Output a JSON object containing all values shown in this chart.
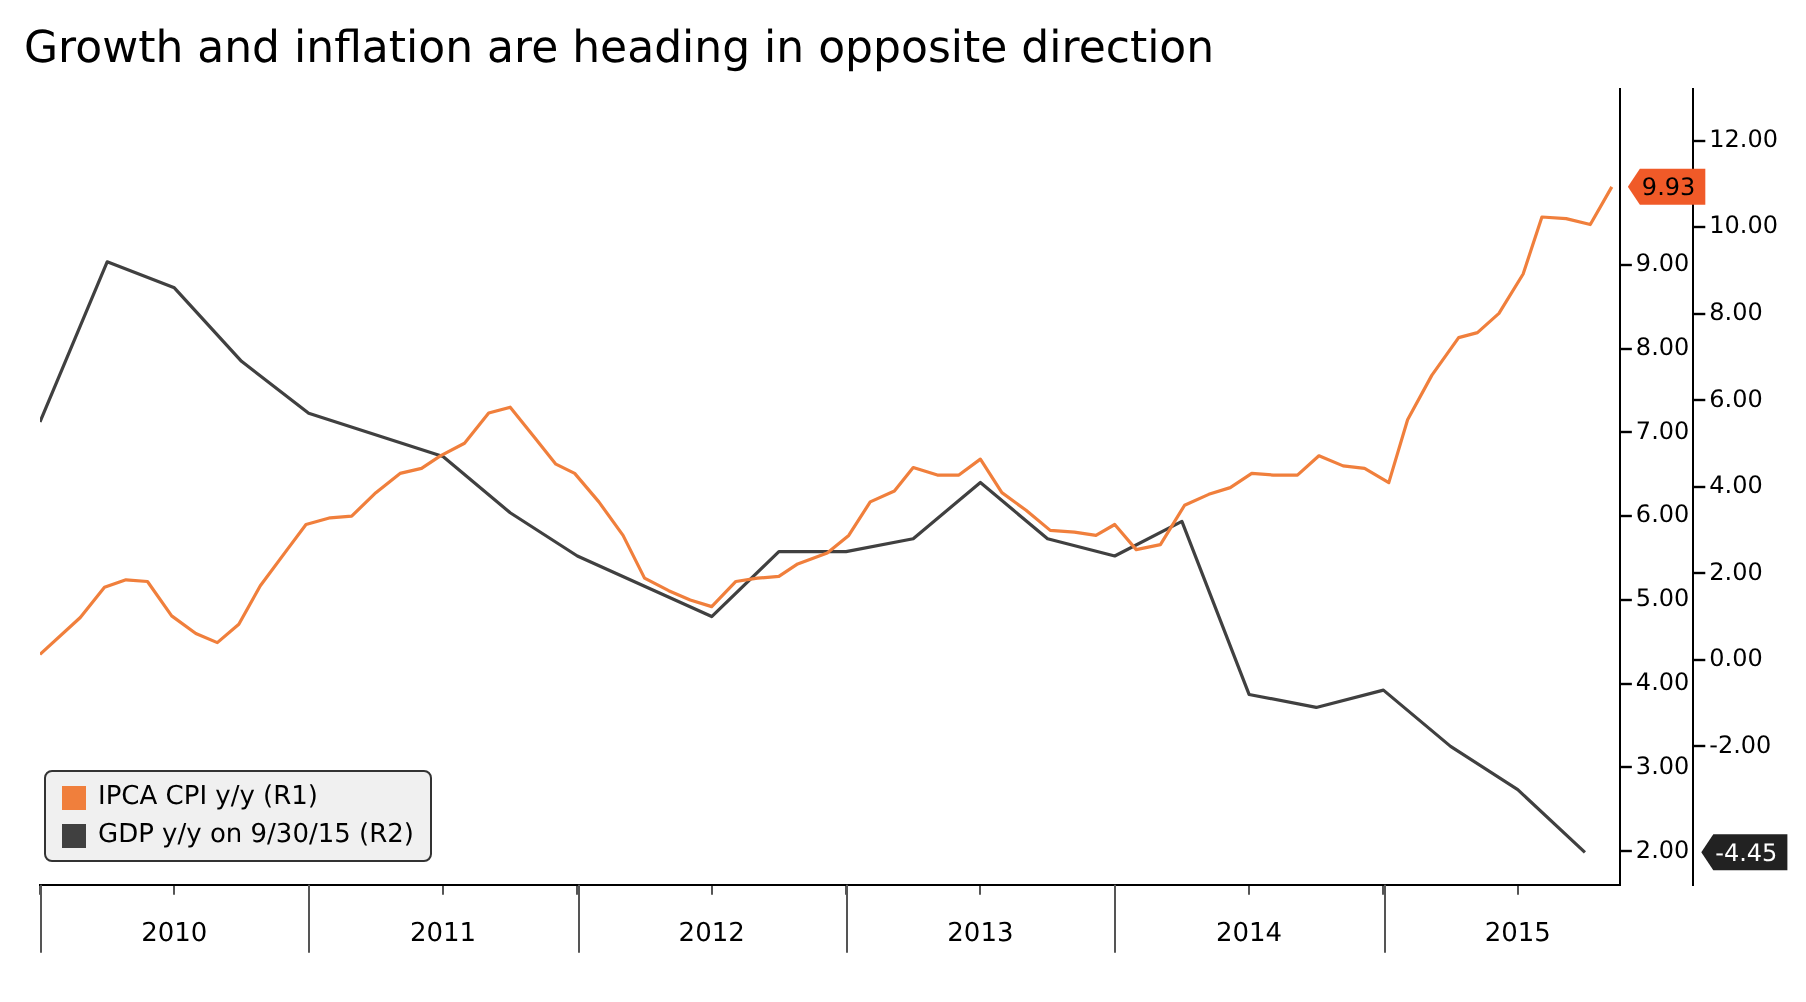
{
  "chart_data": {
    "type": "line",
    "title": "Growth and inflation are heading in opposite direction",
    "xlim": [
      2010,
      2015.88
    ],
    "xticks": [
      {
        "value": 2010,
        "label": null
      },
      {
        "value": 2010.5,
        "label": "2010"
      },
      {
        "value": 2011,
        "label": null
      },
      {
        "value": 2011.5,
        "label": "2011"
      },
      {
        "value": 2012,
        "label": null
      },
      {
        "value": 2012.5,
        "label": "2012"
      },
      {
        "value": 2013,
        "label": null
      },
      {
        "value": 2013.5,
        "label": "2013"
      },
      {
        "value": 2014,
        "label": null
      },
      {
        "value": 2014.5,
        "label": "2014"
      },
      {
        "value": 2015,
        "label": null
      },
      {
        "value": 2015.5,
        "label": "2015"
      }
    ],
    "ylim": [
      1.6,
      11.1
    ],
    "yticks": [
      {
        "value": 2,
        "label": "2.00"
      },
      {
        "value": 3,
        "label": "3.00"
      },
      {
        "value": 4,
        "label": "4.00"
      },
      {
        "value": 5,
        "label": "5.00"
      },
      {
        "value": 6,
        "label": "6.00"
      },
      {
        "value": 7,
        "label": "7.00"
      },
      {
        "value": 8,
        "label": "8.00"
      },
      {
        "value": 9,
        "label": "9.00"
      }
    ],
    "y2lim": [
      -5.2,
      13.2
    ],
    "y2ticks": [
      {
        "value": -2,
        "label": "-2.00"
      },
      {
        "value": 0,
        "label": "0.00"
      },
      {
        "value": 2,
        "label": "2.00"
      },
      {
        "value": 4,
        "label": "4.00"
      },
      {
        "value": 6,
        "label": "6.00"
      },
      {
        "value": 8,
        "label": "8.00"
      },
      {
        "value": 10,
        "label": "10.00"
      },
      {
        "value": 12,
        "label": "12.00"
      }
    ],
    "grid": false,
    "legend": "bottom left",
    "marker": "none",
    "line_style": "solid",
    "series": [
      {
        "name": "IPCA CPI y/y (R1)",
        "color": "#f07f3c",
        "x": [
          2010.0,
          2010.15,
          2010.24,
          2010.32,
          2010.4,
          2010.49,
          2010.58,
          2010.66,
          2010.74,
          2010.82,
          2010.92,
          2010.99,
          2011.08,
          2011.16,
          2011.25,
          2011.34,
          2011.42,
          2011.49,
          2011.58,
          2011.67,
          2011.75,
          2011.84,
          2011.92,
          2011.99,
          2012.08,
          2012.17,
          2012.25,
          2012.34,
          2012.42,
          2012.5,
          2012.59,
          2012.67,
          2012.75,
          2012.82,
          2012.93,
          2013.01,
          2013.09,
          2013.18,
          2013.25,
          2013.34,
          2013.42,
          2013.5,
          2013.58,
          2013.67,
          2013.76,
          2013.85,
          2013.93,
          2014.0,
          2014.08,
          2014.17,
          2014.26,
          2014.35,
          2014.43,
          2014.51,
          2014.59,
          2014.68,
          2014.76,
          2014.85,
          2014.93,
          2015.02,
          2015.09,
          2015.18,
          2015.28,
          2015.35,
          2015.43,
          2015.52,
          2015.59,
          2015.68,
          2015.77,
          2015.85
        ],
        "values": [
          4.35,
          4.79,
          5.15,
          5.24,
          5.22,
          4.81,
          4.6,
          4.49,
          4.71,
          5.17,
          5.6,
          5.9,
          5.98,
          6.0,
          6.28,
          6.51,
          6.57,
          6.72,
          6.87,
          7.23,
          7.3,
          6.94,
          6.62,
          6.51,
          6.17,
          5.77,
          5.26,
          5.11,
          5.0,
          4.92,
          5.22,
          5.26,
          5.28,
          5.43,
          5.56,
          5.77,
          6.17,
          6.3,
          6.58,
          6.49,
          6.49,
          6.68,
          6.28,
          6.07,
          5.83,
          5.81,
          5.77,
          5.9,
          5.6,
          5.66,
          6.13,
          6.26,
          6.34,
          6.51,
          6.49,
          6.49,
          6.72,
          6.6,
          6.57,
          6.4,
          7.15,
          7.68,
          8.13,
          8.19,
          8.42,
          8.89,
          9.57,
          9.55,
          9.48,
          9.93
        ]
      },
      {
        "name": "GDP y/y on 9/30/15 (R2)",
        "color": "#404040",
        "axis": "y2",
        "x": [
          2010.0,
          2010.25,
          2010.5,
          2010.75,
          2011.0,
          2011.5,
          2011.75,
          2012.0,
          2012.25,
          2012.5,
          2012.75,
          2013.0,
          2013.25,
          2013.5,
          2013.75,
          2014.0,
          2014.25,
          2014.5,
          2014.75,
          2015.0,
          2015.25,
          2015.5,
          2015.75
        ],
        "values": [
          5.5,
          9.2,
          8.6,
          6.9,
          5.7,
          4.7,
          3.4,
          2.4,
          1.7,
          1.0,
          2.5,
          2.5,
          2.8,
          4.1,
          2.8,
          2.4,
          3.2,
          -0.8,
          -1.1,
          -0.7,
          -2.0,
          -3.0,
          -4.45
        ]
      }
    ],
    "annotations": [
      "9.93",
      "-4.45"
    ]
  }
}
